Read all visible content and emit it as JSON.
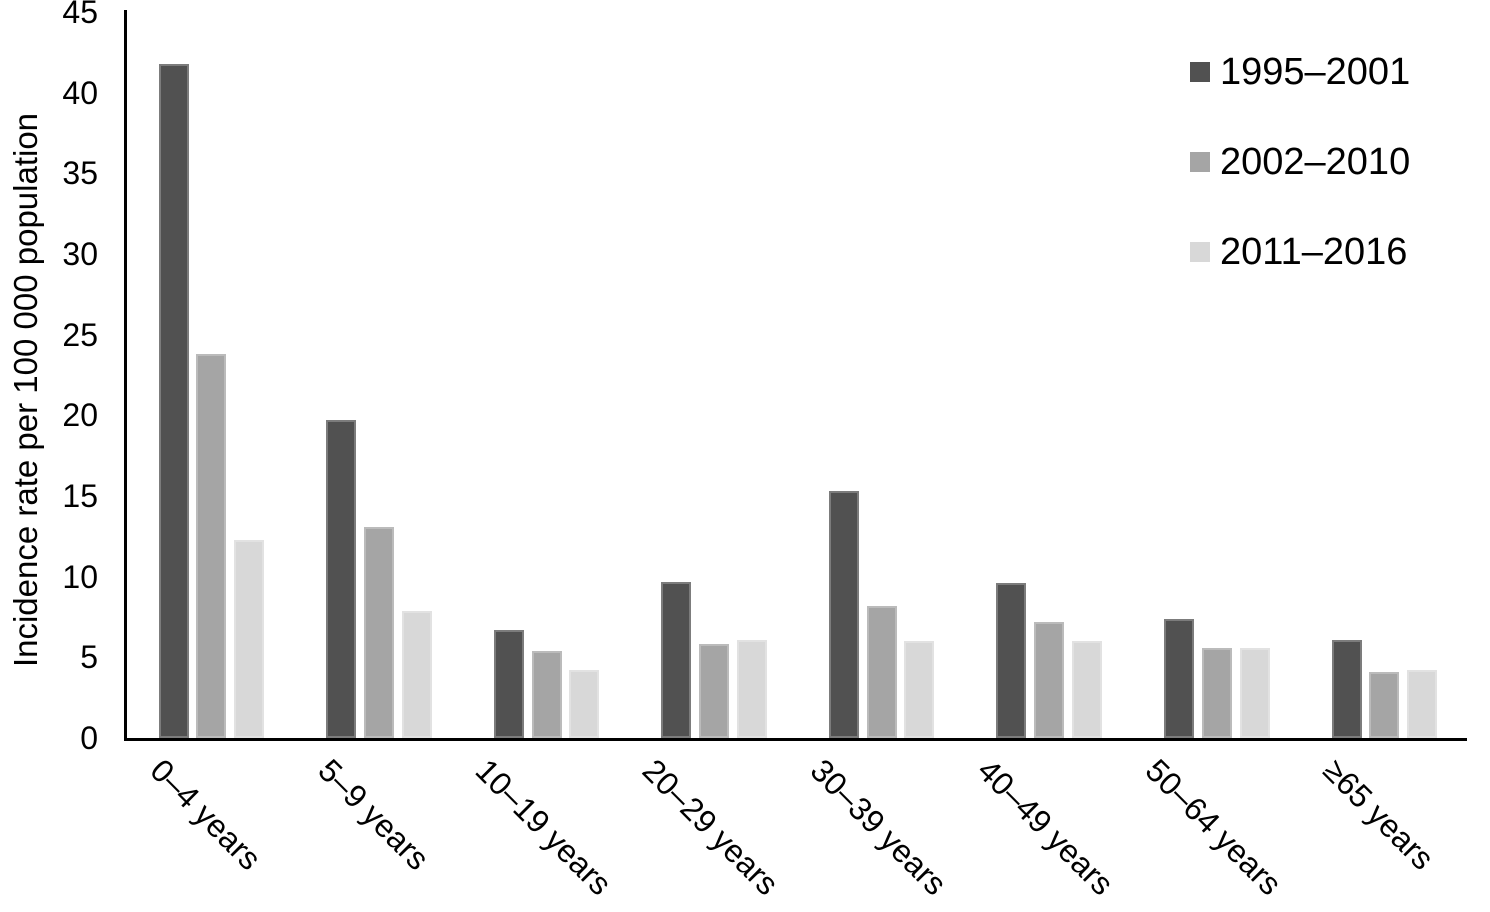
{
  "chart_data": {
    "type": "bar",
    "title": "",
    "ylabel": "Incidence rate per 100 000 population",
    "xlabel": "",
    "ylim": [
      0,
      45
    ],
    "yticks": [
      0,
      5,
      10,
      15,
      20,
      25,
      30,
      35,
      40,
      45
    ],
    "grid": "off",
    "legend_position": "top-right",
    "axis_color": "#000000",
    "background_color": "#ffffff",
    "categories": [
      "0–4 years",
      "5–9 years",
      "10–19 years",
      "20–29 years",
      "30–39 years",
      "40–49 years",
      "50–64 years",
      "≥65 years"
    ],
    "series": [
      {
        "name": "1995–2001",
        "color": "#515151",
        "values": [
          41.8,
          19.7,
          6.7,
          9.7,
          15.3,
          9.6,
          7.4,
          6.1
        ]
      },
      {
        "name": "2002–2010",
        "color": "#a5a5a5",
        "values": [
          23.8,
          13.1,
          5.4,
          5.8,
          8.2,
          7.2,
          5.6,
          4.1
        ]
      },
      {
        "name": "2011–2016",
        "color": "#d8d8d8",
        "values": [
          12.3,
          7.9,
          4.2,
          6.1,
          6.0,
          6.0,
          5.6,
          4.2
        ]
      }
    ]
  }
}
